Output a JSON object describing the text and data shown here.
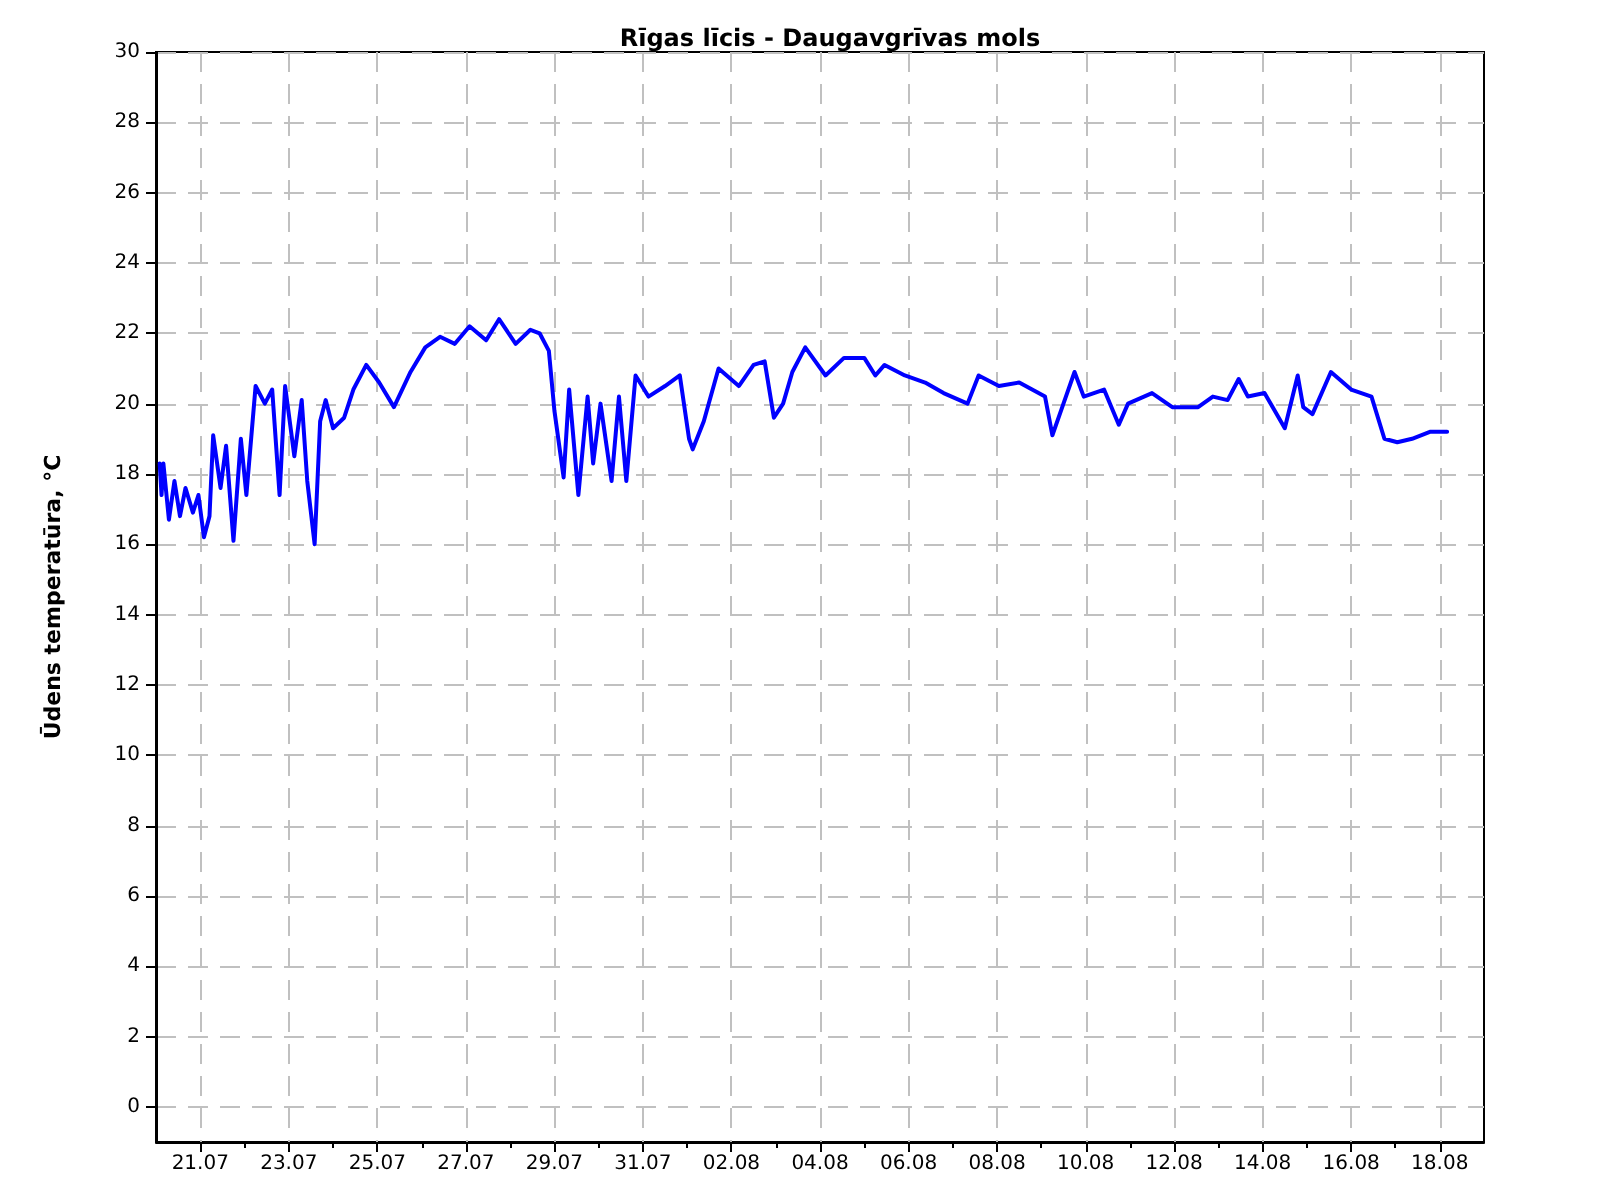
{
  "chart_data": {
    "type": "line",
    "title": "Rīgas līcis - Daugavgrīvas mols",
    "ylabel": "Ūdens temperatūra, °C",
    "x": [
      "--07-20T02:00",
      "--07-20T03:00",
      "--07-20T04:00",
      "--07-20T07:00",
      "--07-20T10:00",
      "--07-20T13:00",
      "--07-20T16:00",
      "--07-20T20:00",
      "--07-20T23:00",
      "--07-21T02:00",
      "--07-21T05:00",
      "--07-21T07:00",
      "--07-21T11:00",
      "--07-21T14:00",
      "--07-21T18:00",
      "--07-21T22:00",
      "--07-22T01:00",
      "--07-22T06:00",
      "--07-22T11:00",
      "--07-22T15:00",
      "--07-22T19:00",
      "--07-22T22:00",
      "--07-23T03:00",
      "--07-23T07:00",
      "--07-23T10:00",
      "--07-23T14:00",
      "--07-23T17:00",
      "--07-23T20:00",
      "--07-24T00:00",
      "--07-24T06:00",
      "--07-24T11:00",
      "--07-24T18:00",
      "--07-25T01:00",
      "--07-25T09:00",
      "--07-25T18:00",
      "--07-26T02:00",
      "--07-26T10:00",
      "--07-26T18:00",
      "--07-27T02:00",
      "--07-27T11:00",
      "--07-27T18:00",
      "--07-28T03:00",
      "--07-28T11:00",
      "--07-28T16:00",
      "--07-28T21:00",
      "--07-29T00:00",
      "--07-29T05:00",
      "--07-29T08:00",
      "--07-29T13:00",
      "--07-29T18:00",
      "--07-29T21:00",
      "--07-30T01:00",
      "--07-30T07:00",
      "--07-30T11:00",
      "--07-30T15:00",
      "--07-30T20:00",
      "--07-31T03:00",
      "--07-31T12:00",
      "--07-31T20:00",
      "--08-01T01:00",
      "--08-01T03:00",
      "--08-01T09:00",
      "--08-01T17:00",
      "--08-02T04:00",
      "--08-02T12:00",
      "--08-02T18:00",
      "--08-02T23:00",
      "--08-03T04:00",
      "--08-03T09:00",
      "--08-03T16:00",
      "--08-04T03:00",
      "--08-04T13:00",
      "--08-05T00:00",
      "--08-05T06:00",
      "--08-05T11:00",
      "--08-05T22:00",
      "--08-06T09:00",
      "--08-06T19:00",
      "--08-07T08:00",
      "--08-07T14:00",
      "--08-08T01:00",
      "--08-08T12:00",
      "--08-09T02:00",
      "--08-09T06:00",
      "--08-09T12:00",
      "--08-09T18:00",
      "--08-09T23:00",
      "--08-10T10:00",
      "--08-10T18:00",
      "--08-10T23:00",
      "--08-11T12:00",
      "--08-11T23:00",
      "--08-12T13:00",
      "--08-12T21:00",
      "--08-13T05:00",
      "--08-13T11:00",
      "--08-13T16:00",
      "--08-14T01:00",
      "--08-14T12:00",
      "--08-14T19:00",
      "--08-14T22:00",
      "--08-15T03:00",
      "--08-15T13:00",
      "--08-16T00:00",
      "--08-16T11:00",
      "--08-16T18:00",
      "--08-17T01:00",
      "--08-17T09:00",
      "--08-17T19:00",
      "--08-18T04:00"
    ],
    "values": [
      18.3,
      17.4,
      18.3,
      16.7,
      17.8,
      16.8,
      17.6,
      16.9,
      17.4,
      16.2,
      16.8,
      19.1,
      17.6,
      18.8,
      16.1,
      19.0,
      17.4,
      20.5,
      20.0,
      20.4,
      17.4,
      20.5,
      18.5,
      20.1,
      17.8,
      16.0,
      19.5,
      20.1,
      19.3,
      19.6,
      20.4,
      21.1,
      20.6,
      19.9,
      20.9,
      21.6,
      21.9,
      21.7,
      22.2,
      21.8,
      22.4,
      21.7,
      22.1,
      22.0,
      21.5,
      19.8,
      17.9,
      20.4,
      17.4,
      20.2,
      18.3,
      20.0,
      17.8,
      20.2,
      17.8,
      20.8,
      20.2,
      20.5,
      20.8,
      19.0,
      18.7,
      19.5,
      21.0,
      20.5,
      21.1,
      21.2,
      19.6,
      20.0,
      20.9,
      21.6,
      20.8,
      21.3,
      21.3,
      20.8,
      21.1,
      20.8,
      20.6,
      20.3,
      20.0,
      20.8,
      20.5,
      20.6,
      20.2,
      19.1,
      20.0,
      20.9,
      20.2,
      20.4,
      19.4,
      20.0,
      20.3,
      19.9,
      19.9,
      20.2,
      20.1,
      20.7,
      20.2,
      20.3,
      19.3,
      20.8,
      19.9,
      19.7,
      20.9,
      20.4,
      20.2,
      19.0,
      18.9,
      19.0,
      19.2,
      19.2
    ],
    "color": "#0000ff",
    "xlim": [
      "--07-20",
      "--08-19"
    ],
    "xticks": [
      {
        "value": "--07-21",
        "label": "21.07"
      },
      {
        "value": "--07-22",
        "label": null
      },
      {
        "value": "--07-23",
        "label": "23.07"
      },
      {
        "value": "--07-24",
        "label": null
      },
      {
        "value": "--07-25",
        "label": "25.07"
      },
      {
        "value": "--07-26",
        "label": null
      },
      {
        "value": "--07-27",
        "label": "27.07"
      },
      {
        "value": "--07-28",
        "label": null
      },
      {
        "value": "--07-29",
        "label": "29.07"
      },
      {
        "value": "--07-30",
        "label": null
      },
      {
        "value": "--07-31",
        "label": "31.07"
      },
      {
        "value": "--08-01",
        "label": null
      },
      {
        "value": "--08-02",
        "label": "02.08"
      },
      {
        "value": "--08-03",
        "label": null
      },
      {
        "value": "--08-04",
        "label": "04.08"
      },
      {
        "value": "--08-05",
        "label": null
      },
      {
        "value": "--08-06",
        "label": "06.08"
      },
      {
        "value": "--08-07",
        "label": null
      },
      {
        "value": "--08-08",
        "label": "08.08"
      },
      {
        "value": "--08-09",
        "label": null
      },
      {
        "value": "--08-10",
        "label": "10.08"
      },
      {
        "value": "--08-11",
        "label": null
      },
      {
        "value": "--08-12",
        "label": "12.08"
      },
      {
        "value": "--08-13",
        "label": null
      },
      {
        "value": "--08-14",
        "label": "14.08"
      },
      {
        "value": "--08-15",
        "label": null
      },
      {
        "value": "--08-16",
        "label": "16.08"
      },
      {
        "value": "--08-17",
        "label": null
      },
      {
        "value": "--08-18",
        "label": "18.08"
      }
    ],
    "ylim": [
      -1,
      30
    ],
    "yticks": [
      0,
      2,
      4,
      6,
      8,
      10,
      12,
      14,
      16,
      18,
      20,
      22,
      24,
      26,
      28,
      30
    ],
    "grid": true,
    "marker": "none",
    "line_style": "solid"
  }
}
